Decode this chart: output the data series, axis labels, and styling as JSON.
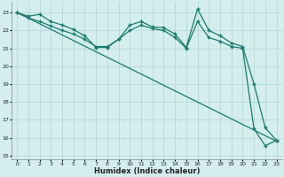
{
  "xlabel": "Humidex (Indice chaleur)",
  "bg_color": "#d4eeee",
  "grid_color": "#b8d8d8",
  "line_color": "#1a7a6e",
  "xlim": [
    -0.5,
    23.5
  ],
  "ylim": [
    14.8,
    23.6
  ],
  "yticks": [
    15,
    16,
    17,
    18,
    19,
    20,
    21,
    22,
    23
  ],
  "xticks": [
    0,
    1,
    2,
    3,
    4,
    5,
    6,
    7,
    8,
    9,
    10,
    11,
    12,
    13,
    14,
    15,
    16,
    17,
    18,
    19,
    20,
    21,
    22,
    23
  ],
  "line1_x": [
    0,
    23
  ],
  "line1_y": [
    23.0,
    15.8
  ],
  "line2_x": [
    0,
    1,
    2,
    3,
    4,
    5,
    6,
    7,
    8,
    9,
    10,
    11,
    12,
    13,
    14,
    15,
    16,
    17,
    18,
    19,
    20,
    21,
    22,
    23
  ],
  "line2_y": [
    23.0,
    22.8,
    22.9,
    22.5,
    22.3,
    22.05,
    21.7,
    21.05,
    21.05,
    21.5,
    22.3,
    22.5,
    22.2,
    22.15,
    21.8,
    21.05,
    23.2,
    22.0,
    21.7,
    21.3,
    21.1,
    19.0,
    16.55,
    15.85
  ],
  "line3_x": [
    0,
    1,
    2,
    3,
    4,
    5,
    6,
    7,
    8,
    9,
    10,
    11,
    12,
    13,
    14,
    15,
    16,
    17,
    18,
    19,
    20,
    21,
    22,
    23
  ],
  "line3_y": [
    23.0,
    22.7,
    22.5,
    22.25,
    22.0,
    21.8,
    21.5,
    21.1,
    21.1,
    21.5,
    22.0,
    22.3,
    22.1,
    22.0,
    21.6,
    21.0,
    22.5,
    21.6,
    21.4,
    21.1,
    21.0,
    16.5,
    15.55,
    15.85
  ]
}
